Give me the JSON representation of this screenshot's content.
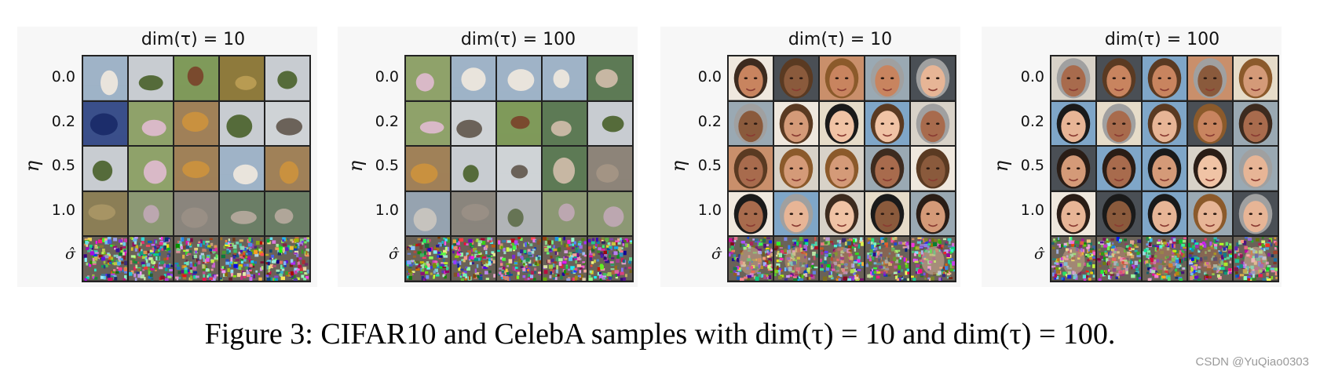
{
  "panels": [
    {
      "title": "dim(τ) = 10",
      "dataset": "CIFAR10"
    },
    {
      "title": "dim(τ) = 100",
      "dataset": "CIFAR10"
    },
    {
      "title": "dim(τ) = 10",
      "dataset": "CelebA"
    },
    {
      "title": "dim(τ) = 100",
      "dataset": "CelebA"
    }
  ],
  "row_labels": [
    "0.0",
    "0.2",
    "0.5",
    "1.0",
    "σ̂"
  ],
  "axis_label": "η",
  "caption": "Figure 3: CIFAR10 and CelebA samples with dim(τ) = 10 and dim(τ) = 100.",
  "watermark": "CSDN @YuQiao0303",
  "colors": {
    "grid_border": "#222222",
    "panel_bg": "#f7f7f7"
  }
}
